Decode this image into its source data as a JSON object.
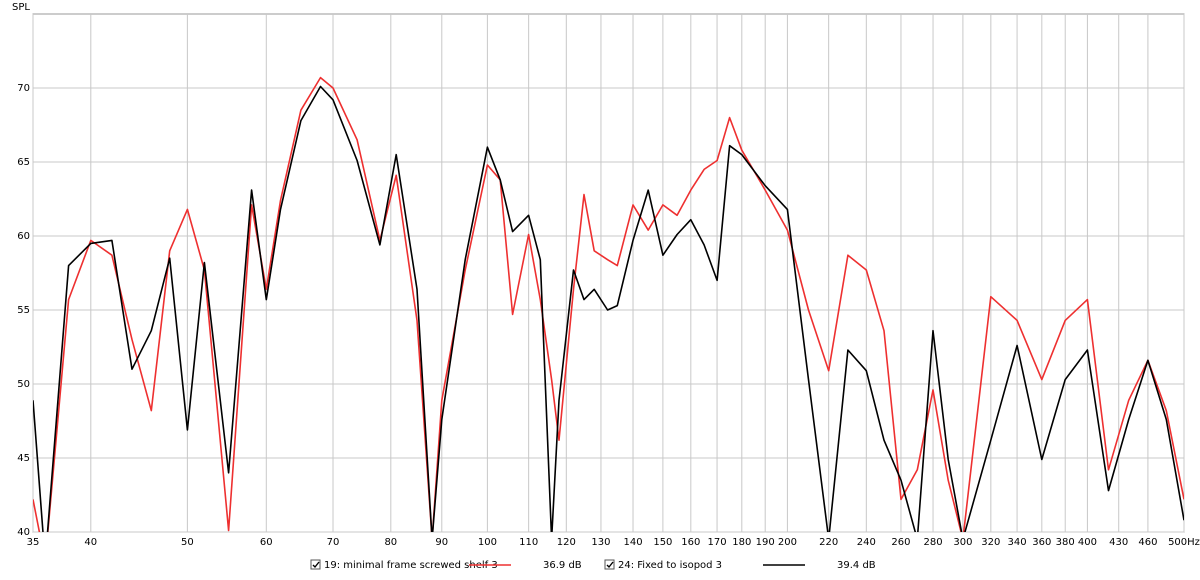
{
  "chart_data": {
    "type": "line",
    "y_label": "SPL",
    "log_x": true,
    "grid": true,
    "xlim": [
      35,
      500
    ],
    "ylim": [
      40,
      75
    ],
    "xticks": [
      35,
      40,
      50,
      60,
      70,
      80,
      90,
      100,
      110,
      120,
      130,
      140,
      150,
      160,
      170,
      180,
      190,
      200,
      220,
      240,
      260,
      280,
      300,
      320,
      340,
      360,
      380,
      400,
      430,
      460,
      {
        "value": 500,
        "label": "500Hz"
      }
    ],
    "yticks": [
      40,
      45,
      50,
      55,
      60,
      65,
      70
    ],
    "x": [
      35,
      36,
      38,
      40,
      42,
      44,
      46,
      48,
      50,
      52,
      55,
      58,
      60,
      62,
      65,
      68,
      70,
      74,
      78,
      81,
      85,
      88,
      90,
      95,
      100,
      103,
      106,
      110,
      113,
      116,
      118,
      122,
      125,
      128,
      132,
      135,
      140,
      145,
      150,
      155,
      160,
      165,
      170,
      175,
      180,
      190,
      200,
      210,
      220,
      230,
      240,
      250,
      260,
      270,
      280,
      290,
      300,
      320,
      340,
      360,
      380,
      400,
      420,
      440,
      460,
      480,
      500
    ],
    "series": [
      {
        "name": "19: minimal frame screwed shelf 3",
        "level": "36.9 dB",
        "color": "#ee3030",
        "values": [
          42.2,
          38,
          55.7,
          59.7,
          58.7,
          53,
          48.2,
          59,
          61.8,
          57.7,
          40.1,
          62.1,
          56.4,
          62.4,
          68.5,
          70.7,
          70,
          66.5,
          59.7,
          64.1,
          54.3,
          39.5,
          48.9,
          57.7,
          64.8,
          63.8,
          54.7,
          60.1,
          55.7,
          50.3,
          46.2,
          56.4,
          62.8,
          59,
          58.4,
          58,
          62.1,
          60.4,
          62.1,
          61.4,
          63.1,
          64.5,
          65.1,
          68,
          65.8,
          63.1,
          60.4,
          55,
          50.9,
          58.7,
          57.7,
          53.6,
          42.2,
          44.2,
          49.6,
          43.5,
          39.5,
          55.9,
          54.3,
          50.3,
          54.3,
          55.7,
          44.2,
          48.9,
          51.6,
          48.2,
          42.2
        ]
      },
      {
        "name": "24: Fixed to isopod 3",
        "level": "39.4 dB",
        "color": "#000000",
        "values": [
          48.9,
          38,
          58,
          59.5,
          59.7,
          51,
          53.6,
          58.5,
          46.9,
          58.2,
          44,
          63.1,
          55.7,
          61.8,
          67.8,
          70.1,
          69.2,
          65.1,
          59.4,
          65.5,
          56.4,
          39.5,
          47.6,
          58.4,
          66,
          63.8,
          60.3,
          61.4,
          58.4,
          39.5,
          48.9,
          57.7,
          55.7,
          56.4,
          55,
          55.3,
          59.7,
          63.1,
          58.7,
          60.1,
          61.1,
          59.4,
          57,
          66.1,
          65.5,
          63.4,
          61.8,
          50.3,
          39.5,
          52.3,
          50.9,
          46.2,
          43.5,
          39.5,
          53.6,
          44.9,
          39.5,
          46.2,
          52.6,
          44.9,
          50.3,
          52.3,
          42.8,
          47.6,
          51.6,
          47.6,
          40.8
        ]
      }
    ]
  }
}
